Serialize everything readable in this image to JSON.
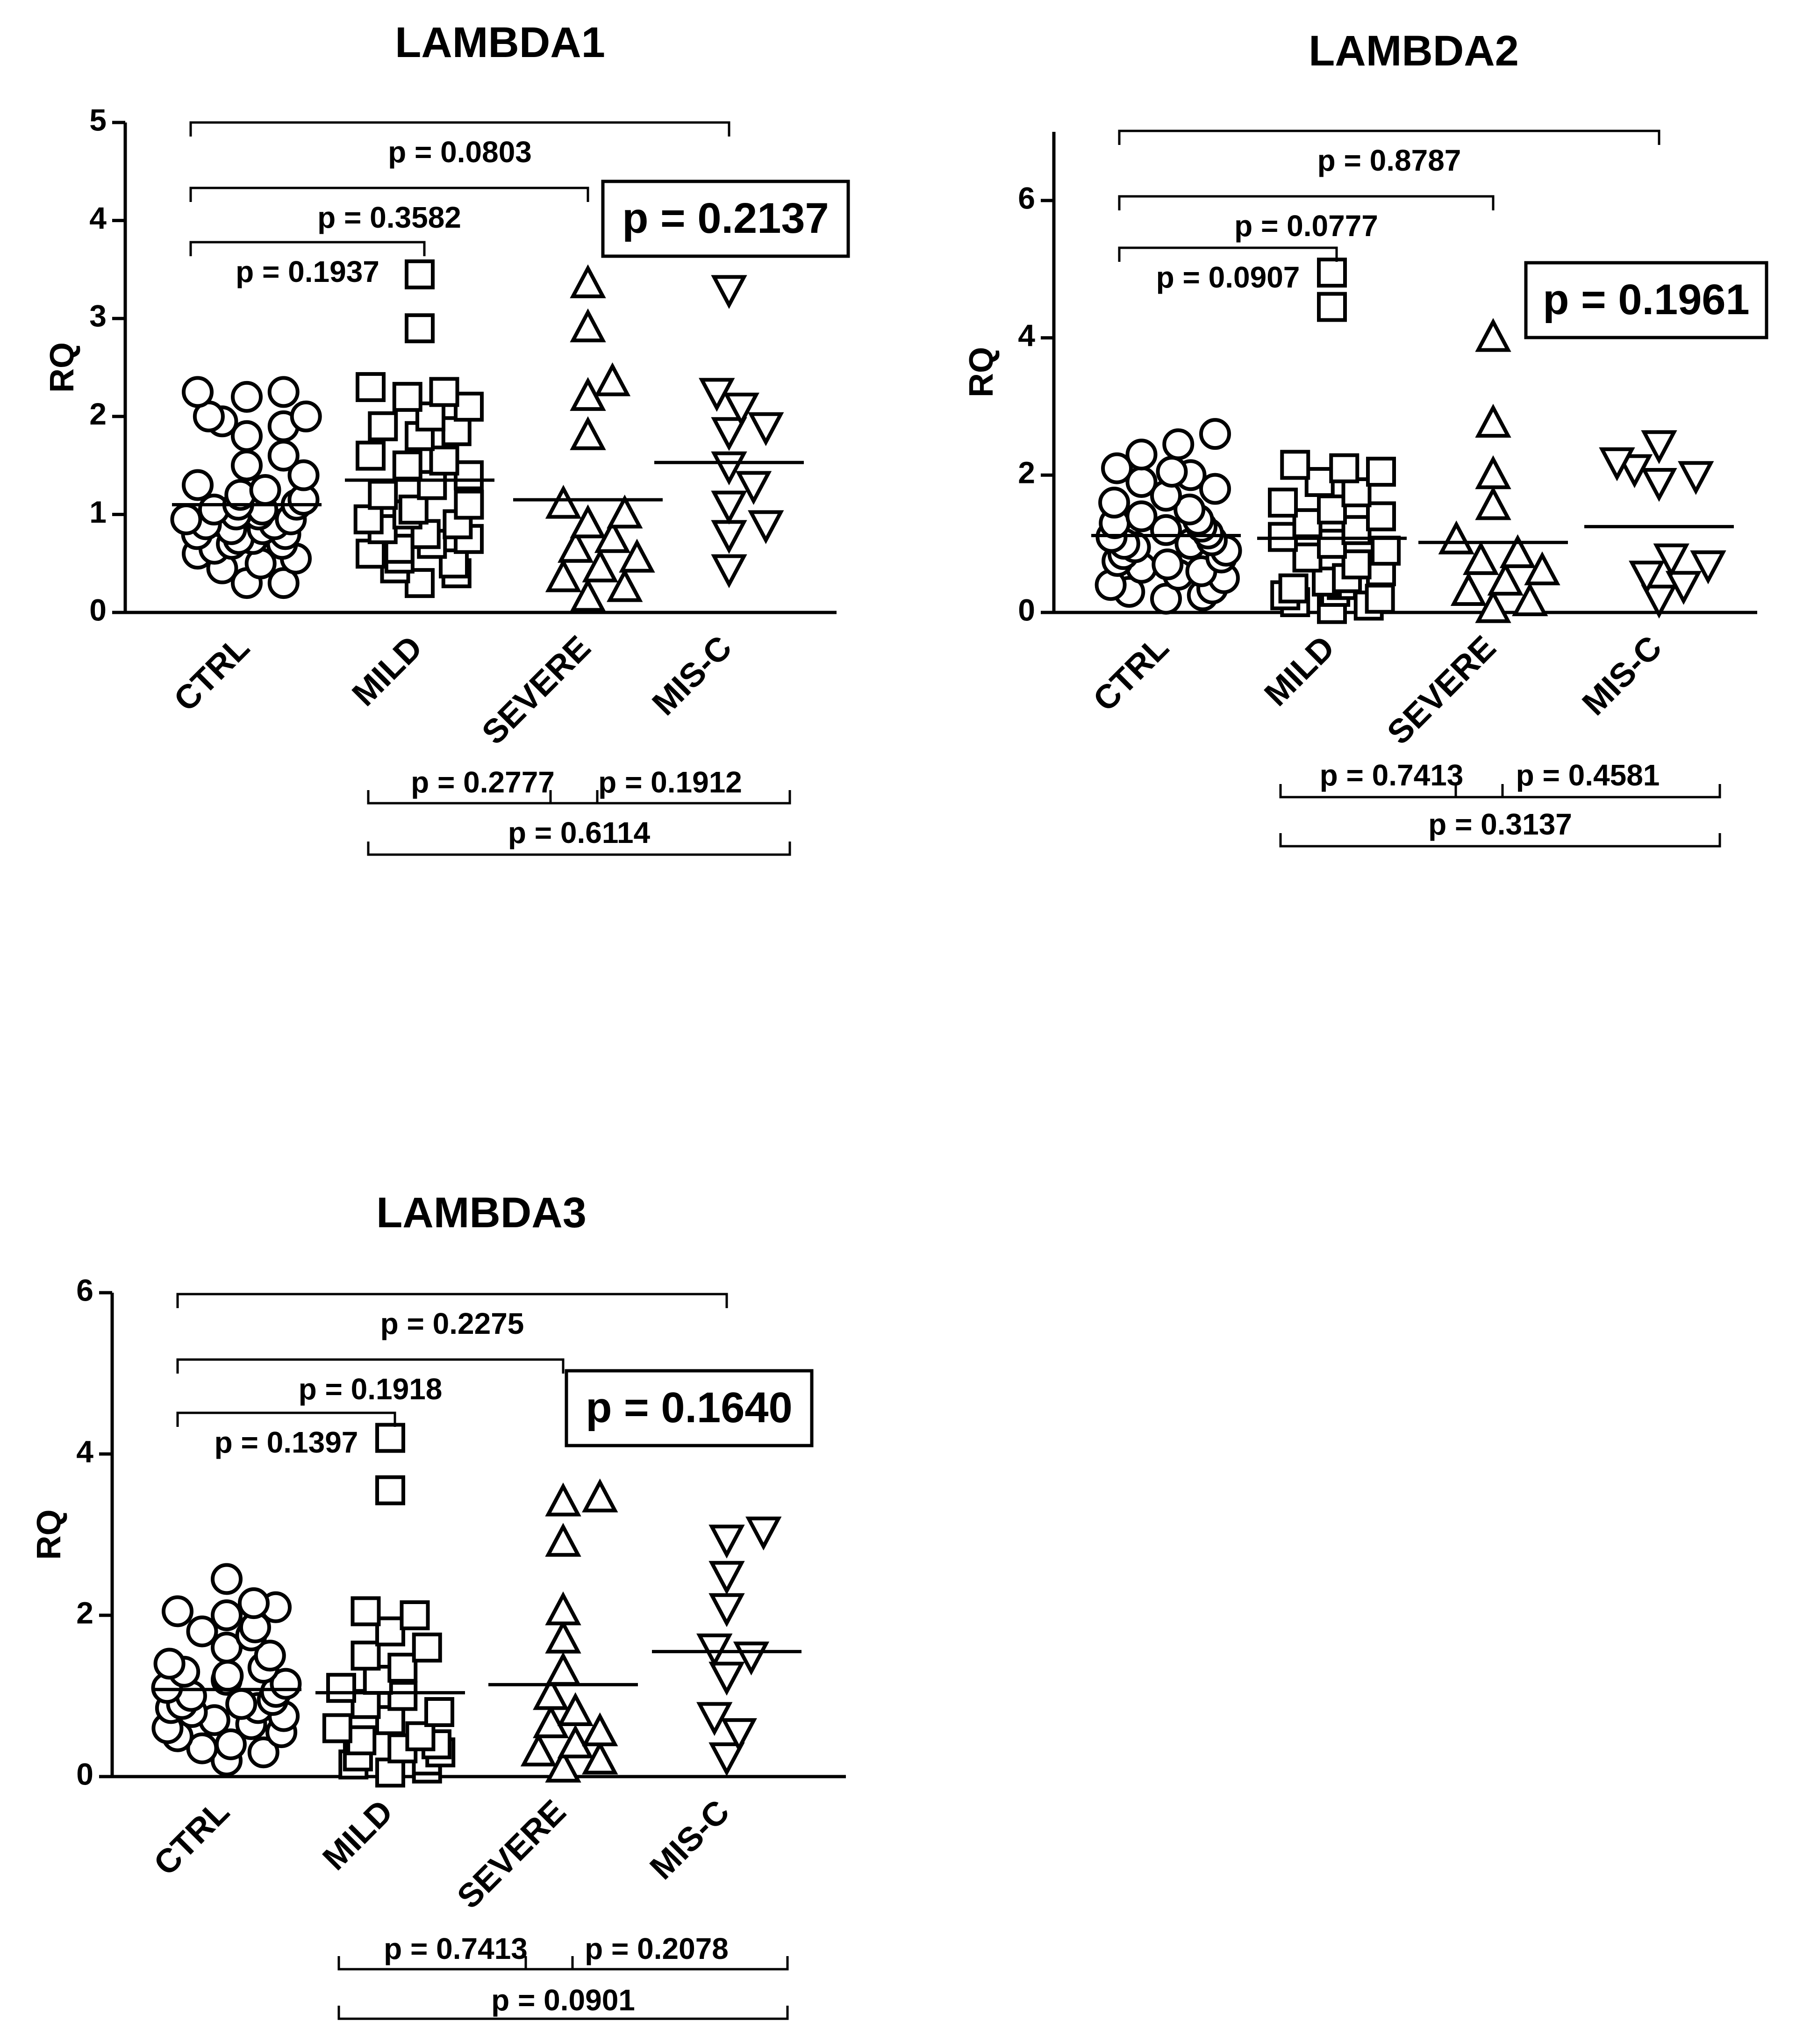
{
  "chart_data": [
    {
      "type": "scatter",
      "title": "LAMBDA1",
      "ylabel": "RQ",
      "ylim": [
        0,
        5
      ],
      "yticks": [
        0,
        1,
        2,
        3,
        4,
        5
      ],
      "categories": [
        "CTRL",
        "MILD",
        "SEVERE",
        "MIS-C"
      ],
      "markers": [
        "circle",
        "square",
        "triangle-up",
        "triangle-down"
      ],
      "means": [
        1.1,
        1.35,
        1.15,
        1.53
      ],
      "groups": [
        [
          0.3,
          0.3,
          0.45,
          0.5,
          0.55,
          0.6,
          0.65,
          0.7,
          0.7,
          0.75,
          0.75,
          0.8,
          0.8,
          0.85,
          0.85,
          0.9,
          0.9,
          0.95,
          0.95,
          1.0,
          1.0,
          1.05,
          1.05,
          1.1,
          1.1,
          1.15,
          1.2,
          1.25,
          1.3,
          1.4,
          1.5,
          1.6,
          1.8,
          1.9,
          1.95,
          2.0,
          2.0,
          2.2,
          2.25,
          2.25
        ],
        [
          0.3,
          0.4,
          0.45,
          0.5,
          0.55,
          0.6,
          0.65,
          0.7,
          0.75,
          0.8,
          0.85,
          0.9,
          0.95,
          1.0,
          1.05,
          1.1,
          1.2,
          1.3,
          1.4,
          1.5,
          1.55,
          1.6,
          1.8,
          1.85,
          1.9,
          2.0,
          2.1,
          2.2,
          2.25,
          2.3,
          2.9,
          3.45
        ],
        [
          0.15,
          0.25,
          0.35,
          0.45,
          0.55,
          0.65,
          0.75,
          0.9,
          1.0,
          1.1,
          1.8,
          2.2,
          2.35,
          2.9,
          3.35
        ],
        [
          0.45,
          0.8,
          0.9,
          1.1,
          1.3,
          1.5,
          1.85,
          1.9,
          2.1,
          2.25,
          3.3
        ]
      ],
      "comparisons_above": [
        {
          "from": 0,
          "to": 1,
          "label": "p = 0.1937"
        },
        {
          "from": 0,
          "to": 2,
          "label": "p = 0.3582"
        },
        {
          "from": 0,
          "to": 3,
          "label": "p = 0.0803"
        }
      ],
      "comparisons_below": [
        {
          "from": 1,
          "to": 2,
          "label": "p = 0.2777"
        },
        {
          "from": 2,
          "to": 3,
          "label": "p = 0.1912"
        },
        {
          "from": 1,
          "to": 3,
          "label": "p = 0.6114"
        }
      ],
      "overall_p": "p = 0.2137"
    },
    {
      "type": "scatter",
      "title": "LAMBDA2",
      "ylabel": "RQ",
      "ylim": [
        0,
        7
      ],
      "yticks": [
        0,
        2,
        4,
        6
      ],
      "categories": [
        "CTRL",
        "MILD",
        "SEVERE",
        "MIS-C"
      ],
      "markers": [
        "circle",
        "square",
        "triangle-up",
        "triangle-down"
      ],
      "means": [
        1.12,
        1.08,
        1.02,
        1.25
      ],
      "groups": [
        [
          0.2,
          0.25,
          0.3,
          0.35,
          0.4,
          0.5,
          0.55,
          0.6,
          0.65,
          0.7,
          0.75,
          0.8,
          0.85,
          0.9,
          0.95,
          1.0,
          1.0,
          1.05,
          1.1,
          1.15,
          1.2,
          1.25,
          1.3,
          1.35,
          1.4,
          1.5,
          1.6,
          1.7,
          1.8,
          1.9,
          2.0,
          2.05,
          2.1,
          2.3,
          2.45,
          2.6
        ],
        [
          0.05,
          0.1,
          0.15,
          0.2,
          0.25,
          0.3,
          0.35,
          0.4,
          0.45,
          0.5,
          0.6,
          0.7,
          0.8,
          0.9,
          1.0,
          1.1,
          1.2,
          1.3,
          1.4,
          1.5,
          1.6,
          1.75,
          1.9,
          2.05,
          2.1,
          2.15,
          4.45,
          4.95
        ],
        [
          0.05,
          0.15,
          0.3,
          0.45,
          0.6,
          0.75,
          0.85,
          1.05,
          1.55,
          2.0,
          2.75,
          4.0
        ],
        [
          0.2,
          0.4,
          0.55,
          0.7,
          0.8,
          1.9,
          2.0,
          2.1,
          2.2,
          2.45
        ]
      ],
      "comparisons_above": [
        {
          "from": 0,
          "to": 1,
          "label": "p = 0.0907"
        },
        {
          "from": 0,
          "to": 2,
          "label": "p = 0.0777"
        },
        {
          "from": 0,
          "to": 3,
          "label": "p = 0.8787"
        }
      ],
      "comparisons_below": [
        {
          "from": 1,
          "to": 2,
          "label": "p = 0.7413"
        },
        {
          "from": 2,
          "to": 3,
          "label": "p = 0.4581"
        },
        {
          "from": 1,
          "to": 3,
          "label": "p = 0.3137"
        }
      ],
      "overall_p": "p = 0.1961"
    },
    {
      "type": "scatter",
      "title": "LAMBDA3",
      "ylabel": "RQ",
      "ylim": [
        0,
        6
      ],
      "yticks": [
        0,
        2,
        4,
        6
      ],
      "categories": [
        "CTRL",
        "MILD",
        "SEVERE",
        "MIS-C"
      ],
      "markers": [
        "circle",
        "square",
        "triangle-up",
        "triangle-down"
      ],
      "means": [
        1.08,
        1.04,
        1.14,
        1.55
      ],
      "groups": [
        [
          0.2,
          0.3,
          0.35,
          0.4,
          0.5,
          0.55,
          0.6,
          0.65,
          0.7,
          0.75,
          0.8,
          0.85,
          0.85,
          0.9,
          0.9,
          0.95,
          1.0,
          1.05,
          1.1,
          1.15,
          1.2,
          1.25,
          1.3,
          1.35,
          1.4,
          1.5,
          1.6,
          1.75,
          1.8,
          1.85,
          2.0,
          2.05,
          2.1,
          2.15,
          2.45
        ],
        [
          0.05,
          0.1,
          0.15,
          0.2,
          0.25,
          0.3,
          0.35,
          0.4,
          0.45,
          0.5,
          0.6,
          0.7,
          0.8,
          0.9,
          1.0,
          1.1,
          1.2,
          1.35,
          1.5,
          1.6,
          1.8,
          2.0,
          2.05,
          3.55,
          4.2
        ],
        [
          0.1,
          0.2,
          0.3,
          0.4,
          0.55,
          0.65,
          0.8,
          1.0,
          1.3,
          1.7,
          2.05,
          2.9,
          3.4,
          3.45
        ],
        [
          0.25,
          0.55,
          0.75,
          1.25,
          1.5,
          1.6,
          2.1,
          2.5,
          2.95,
          3.05
        ]
      ],
      "comparisons_above": [
        {
          "from": 0,
          "to": 1,
          "label": "p = 0.1397"
        },
        {
          "from": 0,
          "to": 2,
          "label": "p = 0.1918"
        },
        {
          "from": 0,
          "to": 3,
          "label": "p = 0.2275"
        }
      ],
      "comparisons_below": [
        {
          "from": 1,
          "to": 2,
          "label": "p = 0.7413"
        },
        {
          "from": 2,
          "to": 3,
          "label": "p = 0.2078"
        },
        {
          "from": 1,
          "to": 3,
          "label": "p = 0.0901"
        }
      ],
      "overall_p": "p = 0.1640"
    }
  ]
}
